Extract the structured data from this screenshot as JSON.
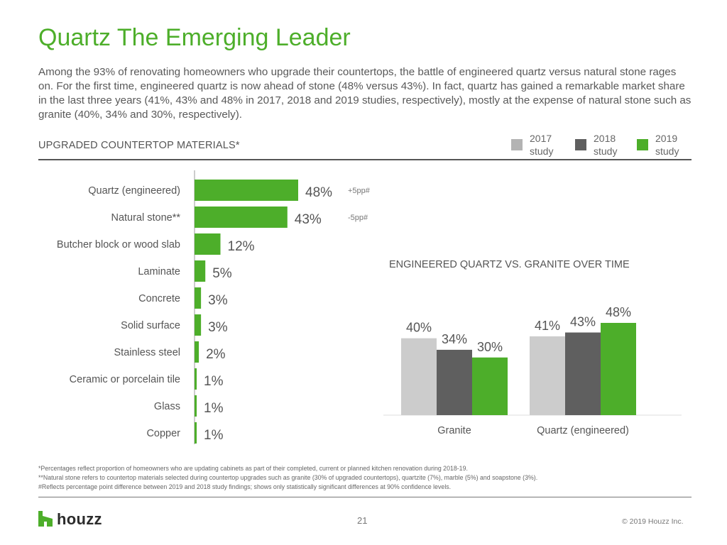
{
  "slide": {
    "title": "Quartz The Emerging Leader",
    "intro": "Among the 93% of renovating homeowners who upgrade their countertops, the battle of engineered quartz versus natural stone rages on. For the first time, engineered quartz is now ahead of stone (48% versus 43%). In fact, quartz has gained a remarkable market share in the last three years (41%, 43% and 48% in 2017, 2018 and 2019 studies, respectively), mostly at the expense of natural stone such as granite (40%, 34% and 30%, respectively).",
    "left_heading": "UPGRADED COUNTERTOP MATERIALS*",
    "right_heading": "ENGINEERED QUARTZ VS. GRANITE OVER TIME",
    "legend": [
      {
        "label": "2017 study",
        "color": "#b3b3b3"
      },
      {
        "label": "2018 study",
        "color": "#5f5f5f"
      },
      {
        "label": "2019 study",
        "color": "#4dae2a"
      }
    ],
    "footnotes": [
      "*Percentages reflect proportion of homeowners who are updating cabinets as part of their completed, current or planned kitchen renovation during 2018-19.",
      "**Natural stone refers to countertop materials selected during countertop upgrades such as granite (30% of upgraded countertops), quartzite (7%), marble (5%) and soapstone (3%).",
      "#Reflects percentage point difference between 2019 and 2018 study findings; shows only statistically significant differences at 90% confidence levels."
    ],
    "logo_text": "houzz",
    "page_number": "21",
    "copyright": "© 2019 Houzz Inc."
  },
  "chart_data": [
    {
      "type": "bar",
      "orientation": "horizontal",
      "title": "UPGRADED COUNTERTOP MATERIALS*",
      "categories": [
        "Quartz (engineered)",
        "Natural stone**",
        "Butcher block or wood slab",
        "Laminate",
        "Concrete",
        "Solid surface",
        "Stainless steel",
        "Ceramic or porcelain tile",
        "Glass",
        "Copper"
      ],
      "values": [
        48,
        43,
        12,
        5,
        3,
        3,
        2,
        1,
        1,
        1
      ],
      "value_labels": [
        "48%",
        "43%",
        "12%",
        "5%",
        "3%",
        "3%",
        "2%",
        "1%",
        "1%",
        "1%"
      ],
      "annotations": [
        "+5pp#",
        "-5pp#",
        "",
        "",
        "",
        "",
        "",
        "",
        "",
        ""
      ],
      "series_name": "2019 study",
      "color": "#4dae2a",
      "xlim": [
        0,
        100
      ]
    },
    {
      "type": "bar",
      "title": "ENGINEERED QUARTZ VS. GRANITE OVER TIME",
      "categories": [
        "Granite",
        "Quartz (engineered)"
      ],
      "series": [
        {
          "name": "2017 study",
          "values": [
            40,
            41
          ],
          "labels": [
            "40%",
            "41%"
          ],
          "color": "#cccccc"
        },
        {
          "name": "2018 study",
          "values": [
            34,
            43
          ],
          "labels": [
            "34%",
            "43%"
          ],
          "color": "#5f5f5f"
        },
        {
          "name": "2019 study",
          "values": [
            30,
            48
          ],
          "labels": [
            "30%",
            "48%"
          ],
          "color": "#4dae2a"
        }
      ],
      "ylim": [
        0,
        60
      ]
    }
  ]
}
